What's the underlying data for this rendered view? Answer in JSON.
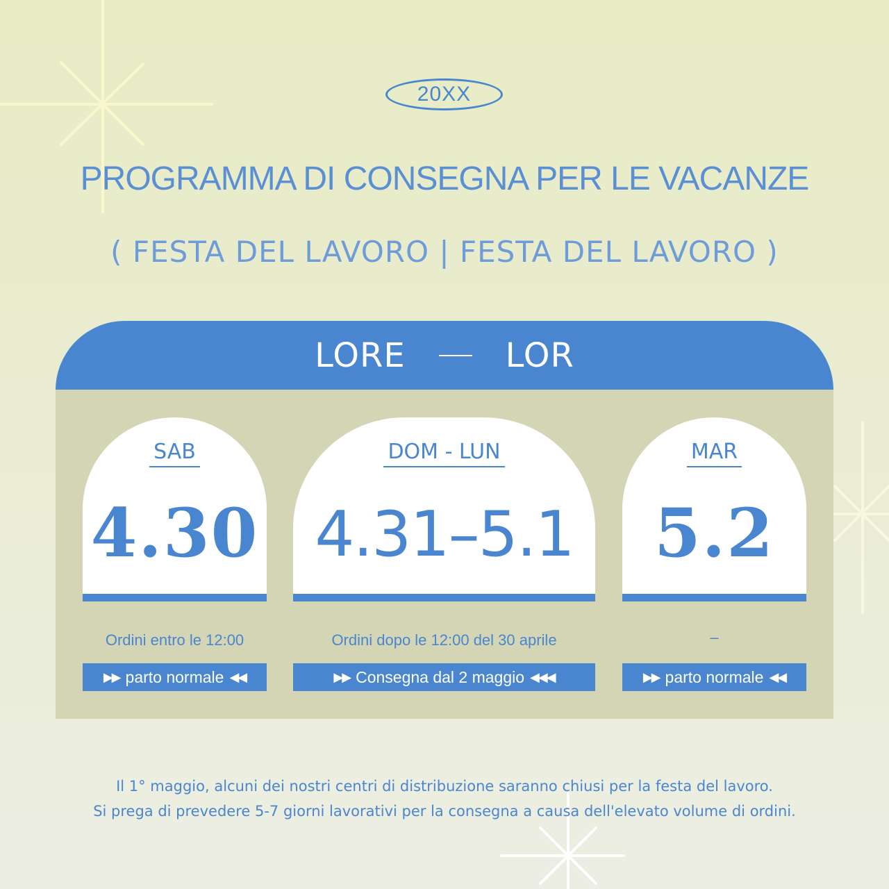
{
  "year": "20XX",
  "title": "PROGRAMMA DI CONSEGNA PER LE VACANZE",
  "subtitle": "( FESTA DEL LAVORO | FESTA DEL LAVORO )",
  "header": {
    "left": "LORE",
    "right": "LOR"
  },
  "cards": [
    {
      "day": "SAB",
      "date": "4.30",
      "note": "Ordini entro le 12:00",
      "bar_label": "parto normale"
    },
    {
      "day": "DOM - LUN",
      "date": "4.31–5.1",
      "note": "Ordini dopo le 12:00 del 30 aprile",
      "bar_label": "Consegna dal 2 maggio"
    },
    {
      "day": "MAR",
      "date": "5.2",
      "note": "–",
      "bar_label": "parto normale"
    }
  ],
  "footer": {
    "line1": "Il 1° maggio, alcuni dei nostri centri di distribuzione saranno chiusi per la festa del lavoro.",
    "line2": "Si prega di prevedere 5-7 giorni lavorativi per la consegna a causa dell'elevato volume di ordini."
  },
  "colors": {
    "accent": "#4a86d0",
    "panel": "#d3d5b4",
    "sparkle": "#f7f7c8"
  },
  "icons": {
    "left_arrows": "double-right-arrow-icon",
    "right_arrows": "double-left-arrow-icon",
    "decoration": "sparkle-icon"
  }
}
